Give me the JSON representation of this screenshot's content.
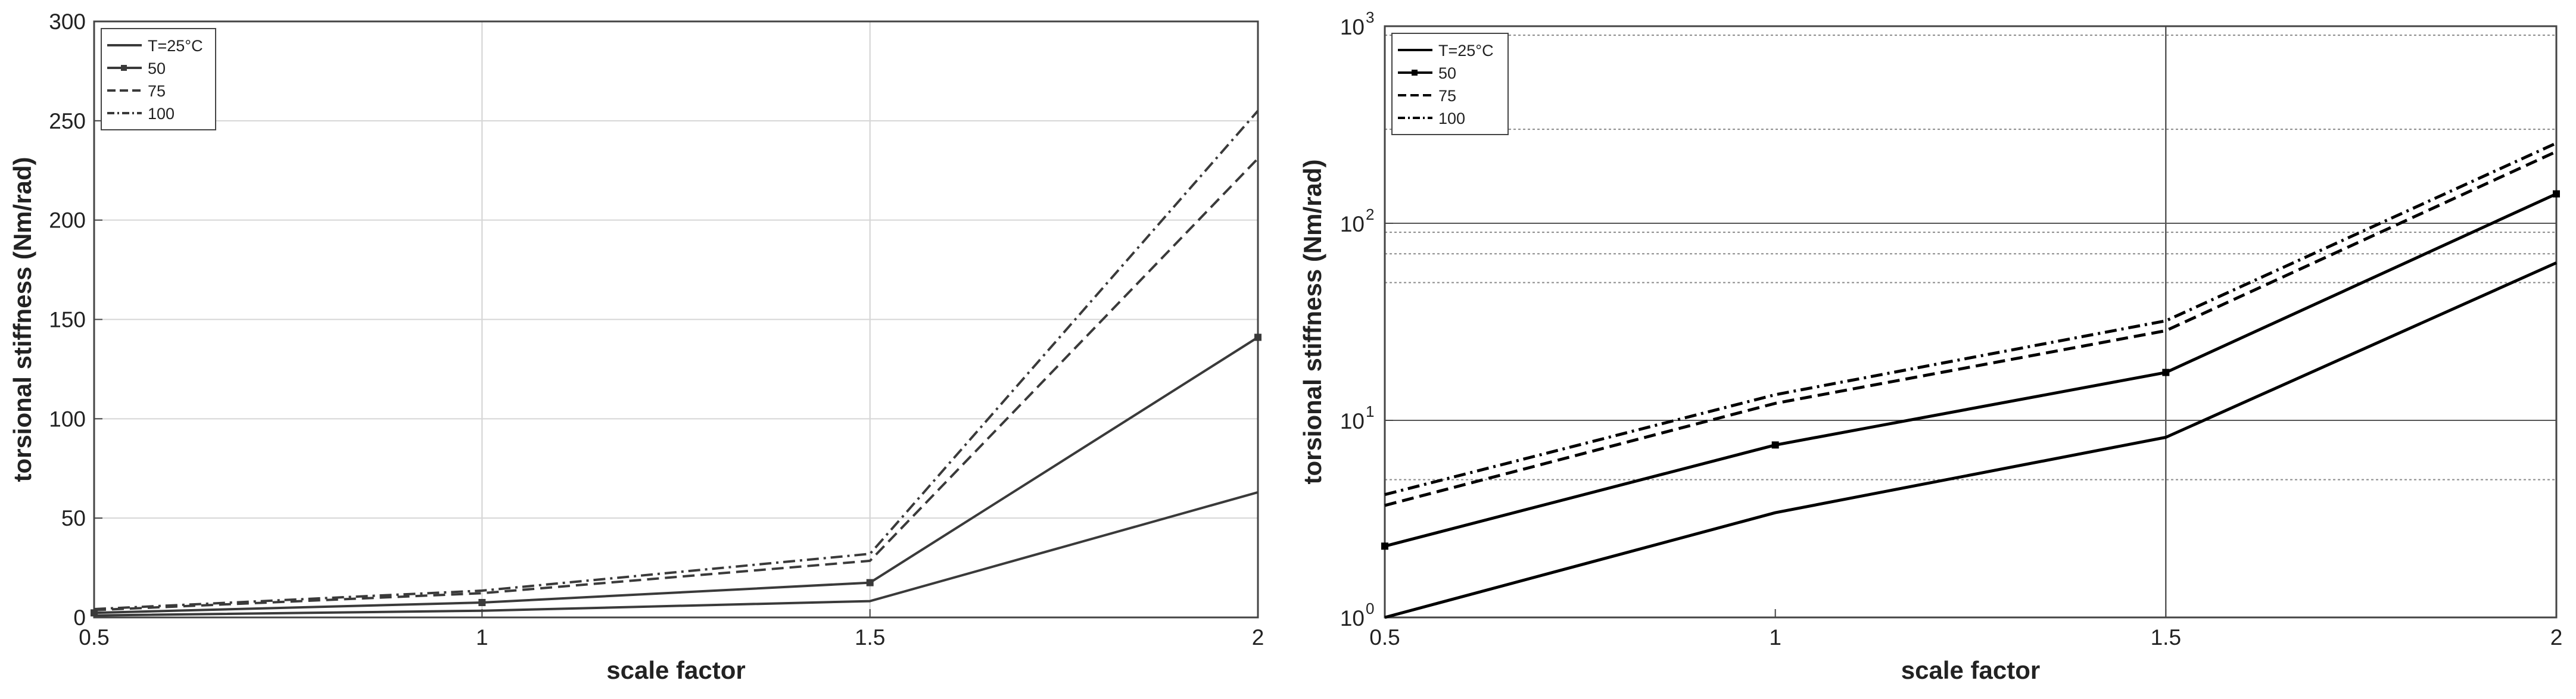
{
  "chart_data": [
    {
      "type": "line",
      "xlabel": "scale factor",
      "ylabel": "torsional stiffness (Nm/rad)",
      "x": [
        0.5,
        1,
        1.5,
        2
      ],
      "xlim": [
        0.5,
        2
      ],
      "xticks": [
        "0.5",
        "1",
        "1.5",
        "2"
      ],
      "ylim": [
        0,
        300
      ],
      "yscale": "linear",
      "yticks": [
        "0",
        "50",
        "100",
        "150",
        "200",
        "250",
        "300"
      ],
      "grid": true,
      "legend_position": "top-left",
      "series": [
        {
          "name": "T=25°C",
          "values": [
            1.0,
            3.4,
            8.2,
            63
          ]
        },
        {
          "name": "50",
          "values": [
            2.3,
            7.5,
            17.5,
            141
          ]
        },
        {
          "name": "75",
          "values": [
            3.7,
            12.2,
            28.5,
            231
          ]
        },
        {
          "name": "100",
          "values": [
            4.2,
            13.5,
            32,
            255
          ]
        }
      ]
    },
    {
      "type": "line",
      "xlabel": "scale factor",
      "ylabel": "torsional stiffness (Nm/rad)",
      "x": [
        0.5,
        1,
        1.5,
        2
      ],
      "xlim": [
        0.5,
        2
      ],
      "xticks": [
        "0.5",
        "1",
        "1.5",
        "2"
      ],
      "ylim": [
        1,
        1000
      ],
      "yscale": "log",
      "yticks": [
        "10",
        "10",
        "10",
        "10"
      ],
      "ytick_exponents": [
        "0",
        "1",
        "2",
        "3"
      ],
      "grid": true,
      "legend_position": "top-left",
      "series": [
        {
          "name": "T=25°C",
          "values": [
            1.0,
            3.4,
            8.2,
            63
          ]
        },
        {
          "name": "50",
          "values": [
            2.3,
            7.5,
            17.5,
            141
          ]
        },
        {
          "name": "75",
          "values": [
            3.7,
            12.2,
            28.5,
            231
          ]
        },
        {
          "name": "100",
          "values": [
            4.2,
            13.5,
            32,
            255
          ]
        }
      ]
    }
  ]
}
